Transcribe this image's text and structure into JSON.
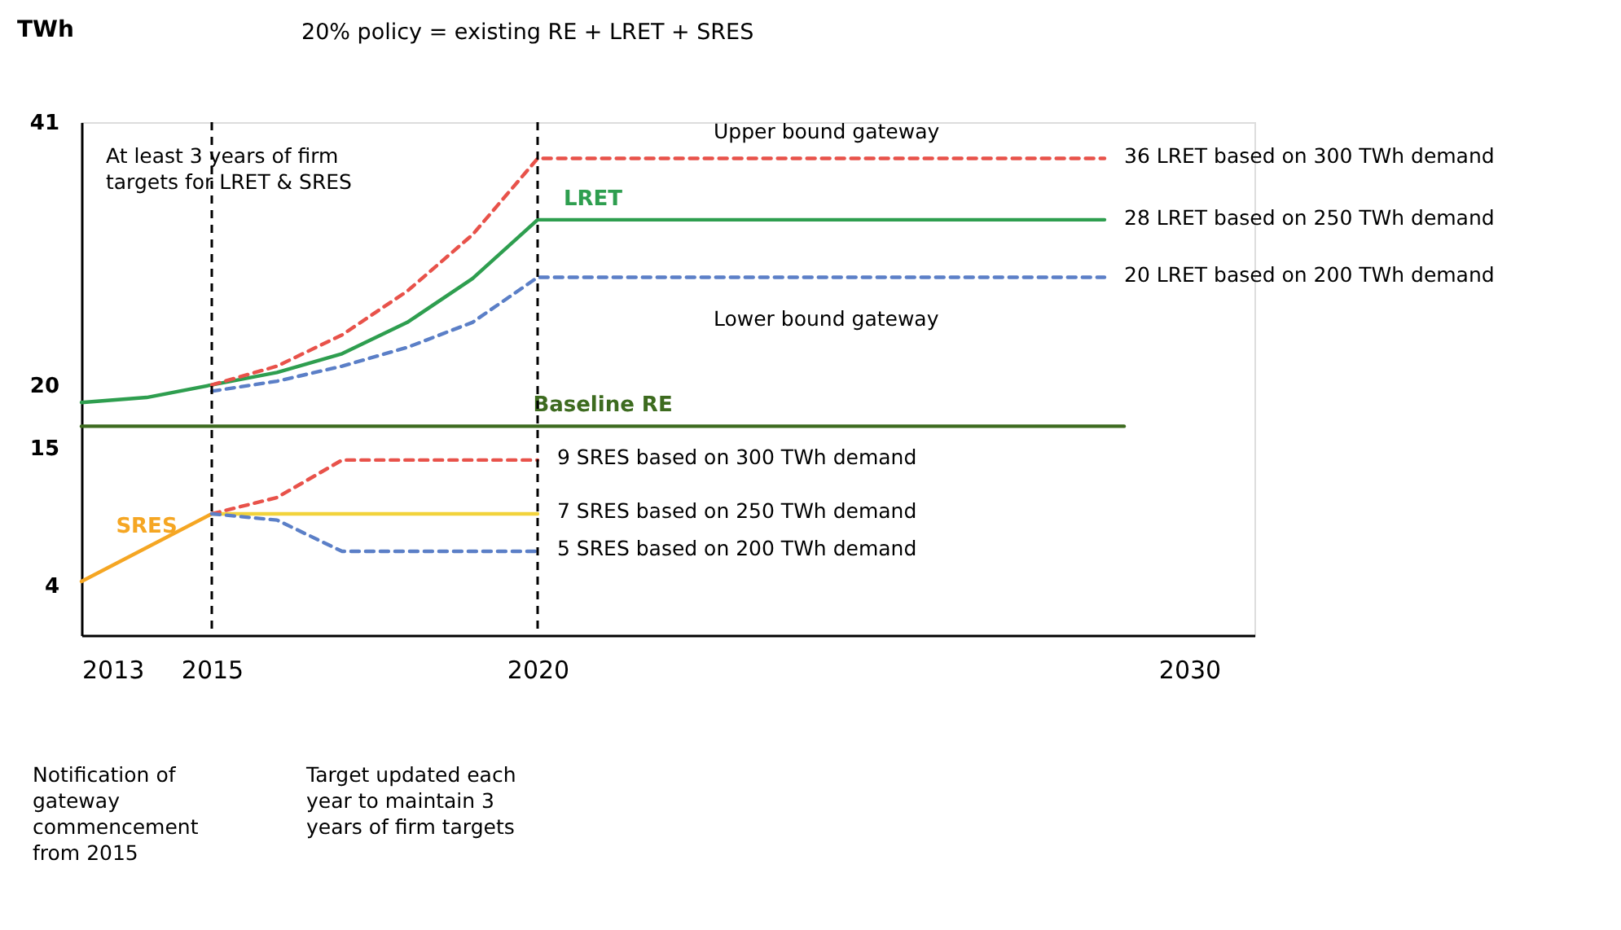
{
  "chart_data": {
    "type": "line",
    "title": "20% policy = existing RE + LRET + SRES",
    "ylabel": "TWh",
    "xlim": [
      2013,
      2031
    ],
    "xticks": [
      2013,
      2015,
      2020,
      2030
    ],
    "ylim": [
      0,
      41
    ],
    "yticks": [
      4,
      15,
      20,
      41
    ],
    "grid": false,
    "series": [
      {
        "name": "LRET",
        "color": "#2e9e4f",
        "x": [
          2013,
          2014,
          2015,
          2016,
          2017,
          2018,
          2019,
          2020,
          2028.7
        ],
        "values": [
          18.6,
          19,
          20,
          21,
          22.5,
          25,
          28.5,
          33.2,
          33.2
        ]
      },
      {
        "color": "#e8524a",
        "line_style": "dashed",
        "x": [
          2015,
          2016,
          2017,
          2018,
          2019,
          2020,
          2028.7
        ],
        "values": [
          20,
          21.5,
          24,
          27.5,
          32,
          38.1,
          38.1
        ]
      },
      {
        "color": "#5b7fc7",
        "line_style": "dashed",
        "x": [
          2015,
          2016,
          2017,
          2018,
          2019,
          2020,
          2028.7
        ],
        "values": [
          19.5,
          20.3,
          21.5,
          23,
          25,
          28.6,
          28.6
        ]
      },
      {
        "name": "Baseline RE",
        "color": "#3d6b1f",
        "x": [
          2013,
          2029
        ],
        "values": [
          16.7,
          16.7
        ]
      },
      {
        "name": "SRES",
        "color": "#f5a623",
        "x": [
          2013,
          2015
        ],
        "values": [
          4.3,
          9.7
        ]
      },
      {
        "color": "#f2d33c",
        "x": [
          2015,
          2020
        ],
        "values": [
          9.7,
          9.7
        ]
      },
      {
        "color": "#e8524a",
        "line_style": "dashed",
        "x": [
          2015,
          2016,
          2017,
          2020
        ],
        "values": [
          9.7,
          11,
          14,
          14
        ]
      },
      {
        "color": "#5b7fc7",
        "line_style": "dashed",
        "x": [
          2015,
          2016,
          2017,
          2020
        ],
        "values": [
          9.7,
          9.2,
          6.7,
          6.7
        ]
      }
    ],
    "ref_lines": [
      {
        "axis": "x",
        "value": 2015,
        "color": "#000000",
        "line_style": "dashed"
      },
      {
        "axis": "x",
        "value": 2020,
        "color": "#000000",
        "line_style": "dashed"
      }
    ],
    "annotations": [
      "Upper bound gateway",
      "Lower bound gateway",
      "36 LRET based on 300 TWh demand",
      "28 LRET based on 250 TWh demand",
      "20 LRET based on 200 TWh demand",
      "9 SRES based on 300 TWh demand",
      "7 SRES based on 250 TWh demand",
      "5 SRES based on 200 TWh demand",
      "At least 3 years of firm\ntargets for LRET & SRES",
      "Notification of\ngateway\ncommencement\nfrom 2015",
      "Target updated each\nyear to maintain 3\nyears of firm targets"
    ]
  }
}
